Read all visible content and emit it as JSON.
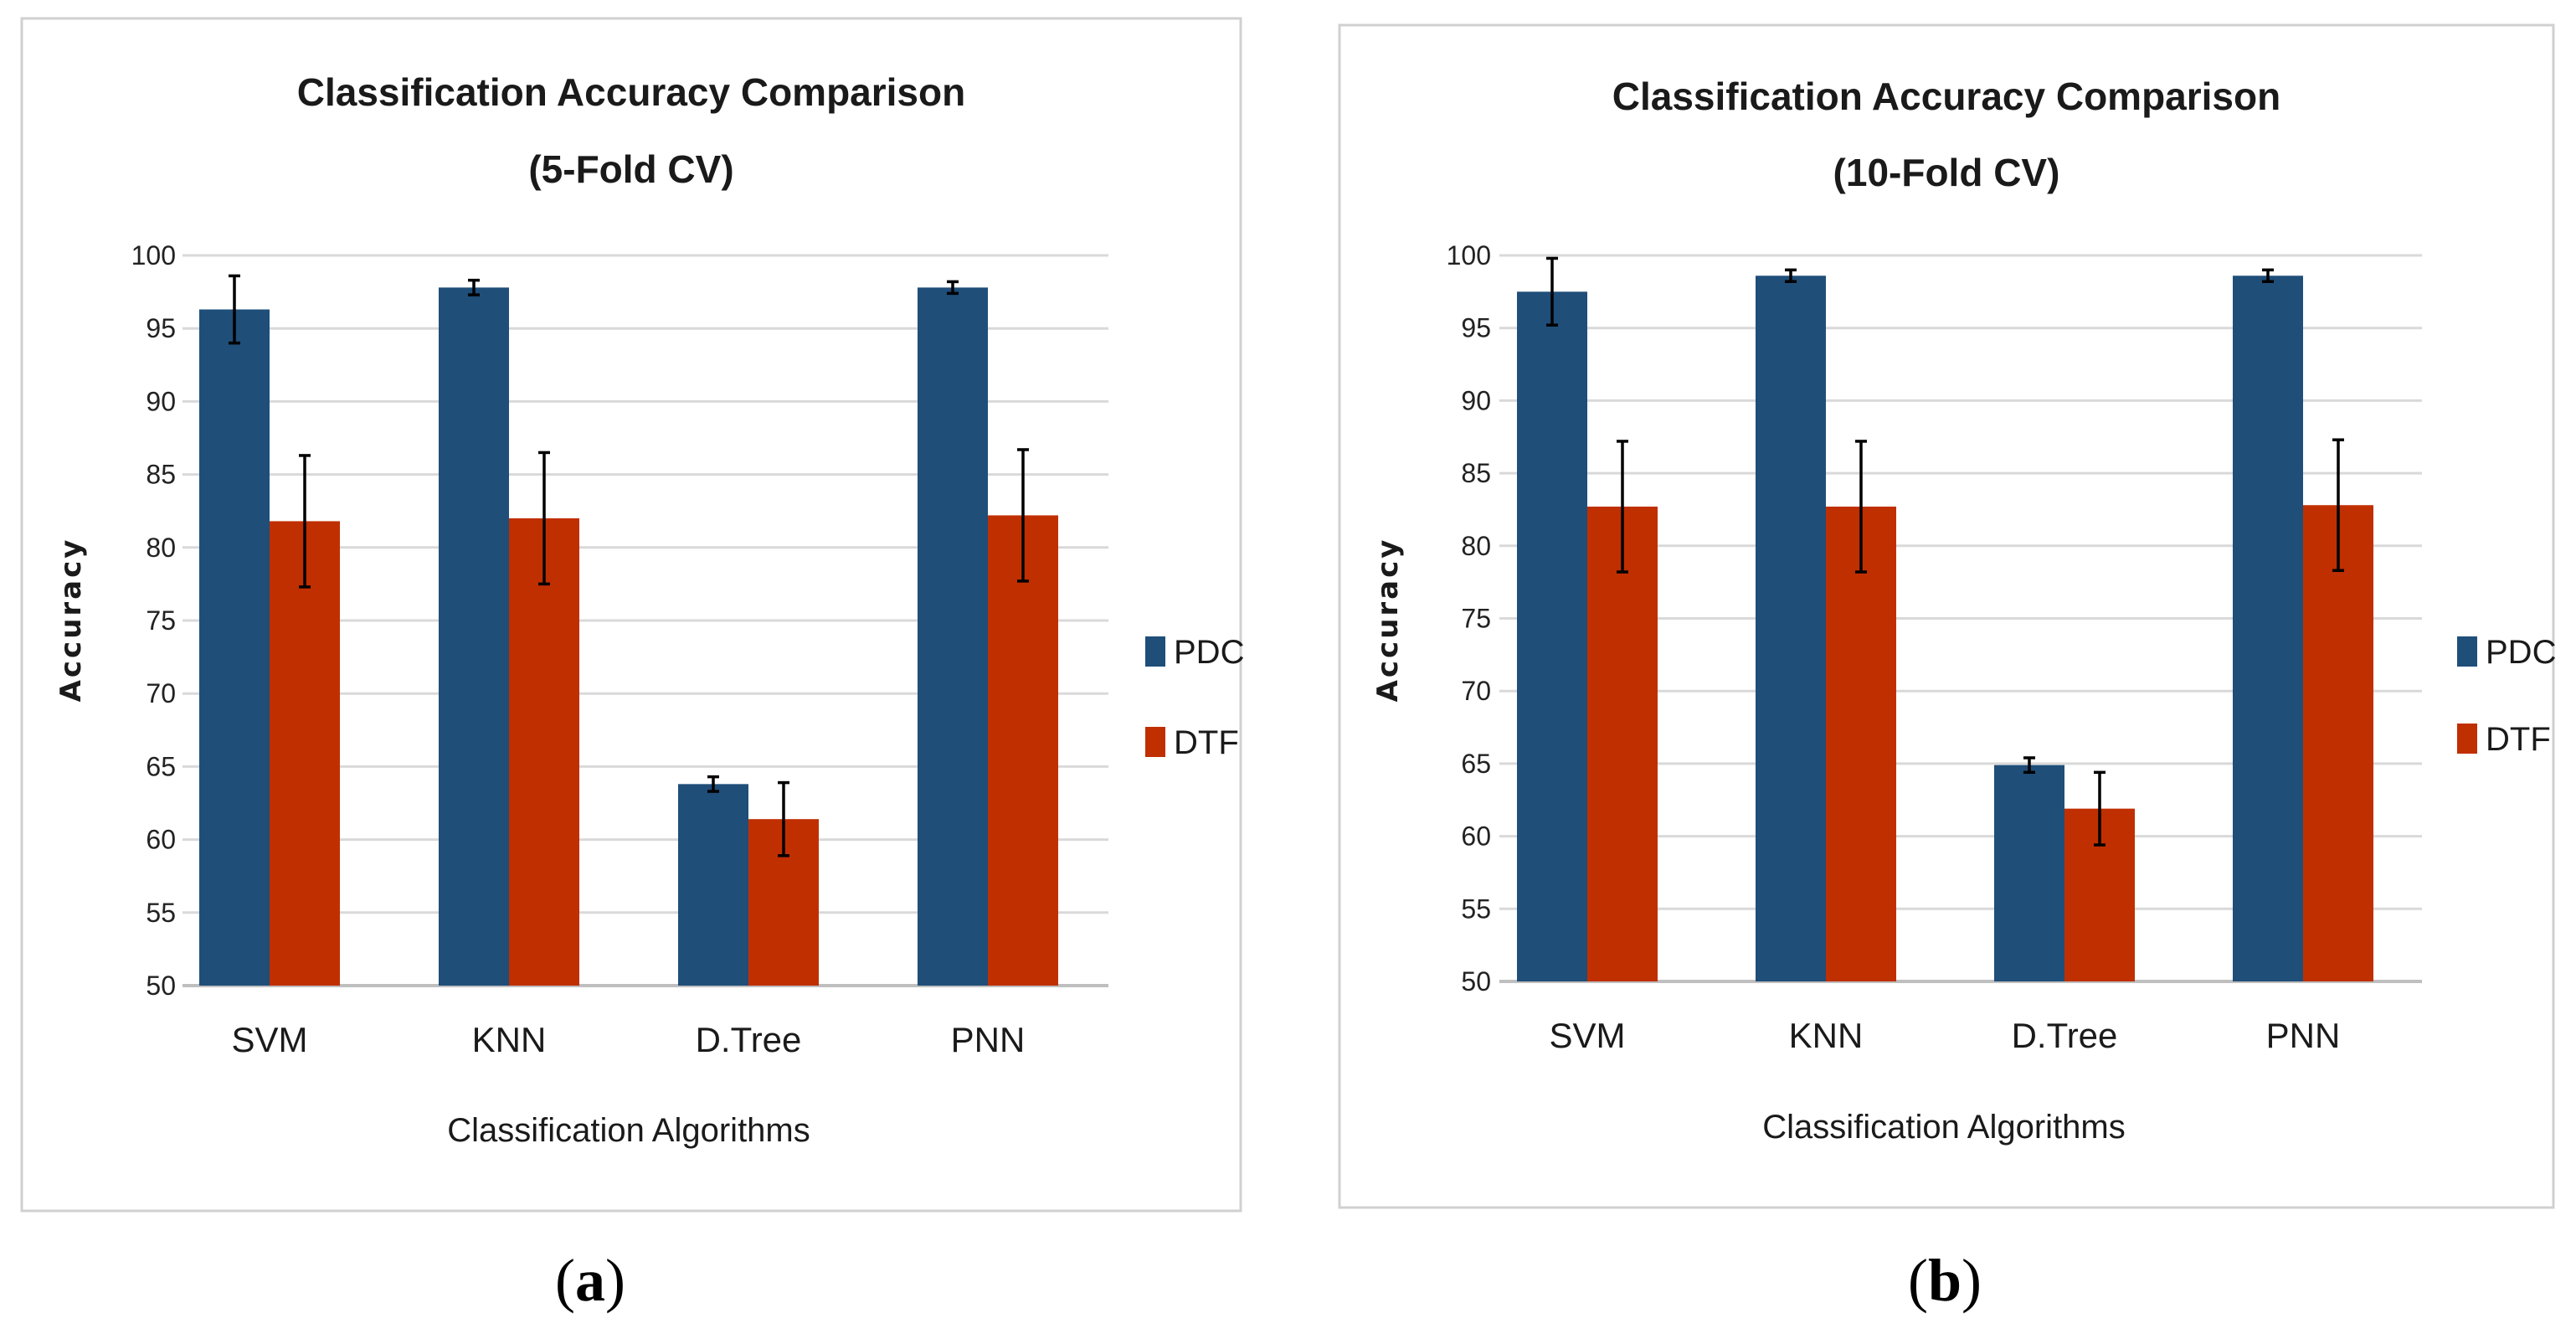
{
  "figure": {
    "captions": [
      "(a)",
      "(b)"
    ]
  },
  "chart_data": [
    {
      "type": "bar",
      "title": "Classification Accuracy Comparison",
      "subtitle": "(5-Fold CV)",
      "xlabel": "Classification Algorithms",
      "ylabel": "Accuracy",
      "ylim": [
        50,
        100
      ],
      "yticks": [
        50,
        55,
        60,
        65,
        70,
        75,
        80,
        85,
        90,
        95,
        100
      ],
      "grid": true,
      "legend_position": "right",
      "categories": [
        "SVM",
        "KNN",
        "D.Tree",
        "PNN"
      ],
      "series": [
        {
          "name": "PDC",
          "color": "#1f4e79",
          "values": [
            96.3,
            97.8,
            63.8,
            97.8
          ],
          "errors": [
            2.3,
            0.5,
            0.5,
            0.4
          ]
        },
        {
          "name": "DTF",
          "color": "#c02f00",
          "values": [
            81.8,
            82.0,
            61.4,
            82.2
          ],
          "errors": [
            4.5,
            4.5,
            2.5,
            4.5
          ]
        }
      ]
    },
    {
      "type": "bar",
      "title": "Classification Accuracy Comparison",
      "subtitle": "(10-Fold CV)",
      "xlabel": "Classification Algorithms",
      "ylabel": "Accuracy",
      "ylim": [
        50,
        100
      ],
      "yticks": [
        50,
        55,
        60,
        65,
        70,
        75,
        80,
        85,
        90,
        95,
        100
      ],
      "grid": true,
      "legend_position": "right",
      "categories": [
        "SVM",
        "KNN",
        "D.Tree",
        "PNN"
      ],
      "series": [
        {
          "name": "PDC",
          "color": "#1f4e79",
          "values": [
            97.5,
            98.6,
            64.9,
            98.6
          ],
          "errors": [
            2.3,
            0.4,
            0.5,
            0.4
          ]
        },
        {
          "name": "DTF",
          "color": "#c02f00",
          "values": [
            82.7,
            82.7,
            61.9,
            82.8
          ],
          "errors": [
            4.5,
            4.5,
            2.5,
            4.5
          ]
        }
      ]
    }
  ]
}
